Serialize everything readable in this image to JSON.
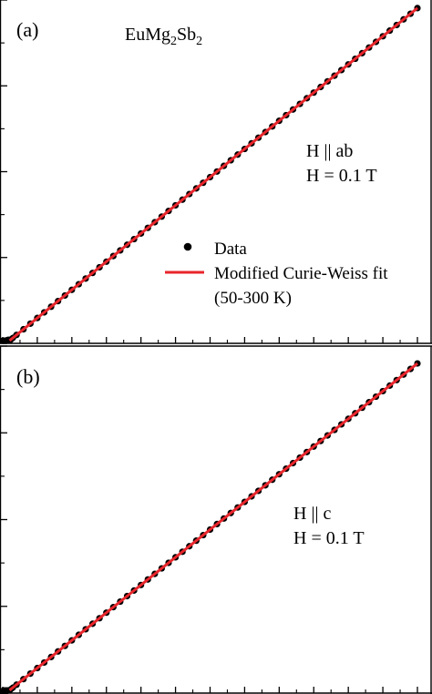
{
  "figure": {
    "compound": {
      "base1": "EuMg",
      "sub1": "2",
      "base2": "Sb",
      "sub2": "2"
    },
    "legend": {
      "data_label": "Data",
      "fit_label_line1": "Modified Curie-Weiss fit",
      "fit_label_line2": "(50-300 K)"
    }
  },
  "colors": {
    "data_marker": "#000000",
    "fit_line": "#e8262c",
    "axes": "#000000"
  },
  "chart_data": [
    {
      "type": "scatter",
      "panel_label": "(a)",
      "annotation_line1": "H || ab",
      "annotation_line2": "H = 0.1 T",
      "x_range": [
        0,
        300
      ],
      "y_range": [
        0,
        3.9
      ],
      "x_ticks_major": 12,
      "y_ticks_major": 4,
      "grid": false,
      "legend_position": "center-right",
      "series": [
        {
          "name": "Data",
          "style": "points",
          "x_start": 0,
          "x_end": 300,
          "x_step": 5,
          "low_T_points": [
            [
              0,
              0.03
            ],
            [
              1,
              0.03
            ],
            [
              2,
              0.03
            ],
            [
              3,
              0.035
            ],
            [
              4,
              0.04
            ]
          ],
          "slope": 0.0128,
          "intercept": -0.032
        },
        {
          "name": "Modified Curie-Weiss fit",
          "style": "line",
          "x": [
            5,
            300
          ],
          "slope": 0.0128,
          "intercept": -0.032
        }
      ]
    },
    {
      "type": "scatter",
      "panel_label": "(b)",
      "annotation_line1": "H || c",
      "annotation_line2": "H = 0.1 T",
      "x_range": [
        0,
        300
      ],
      "y_range": [
        0,
        3.9
      ],
      "x_ticks_major": 12,
      "y_ticks_major": 4,
      "grid": false,
      "legend_position": "none",
      "series": [
        {
          "name": "Data",
          "style": "points",
          "x_start": 0,
          "x_end": 300,
          "x_step": 5,
          "low_T_points": [
            [
              0,
              0.02
            ],
            [
              1,
              0.02
            ],
            [
              2,
              0.02
            ],
            [
              3,
              0.025
            ],
            [
              4,
              0.03
            ]
          ],
          "slope": 0.01245,
          "intercept": -0.03
        },
        {
          "name": "Modified Curie-Weiss fit",
          "style": "line",
          "x": [
            5,
            300
          ],
          "slope": 0.01245,
          "intercept": -0.03
        }
      ]
    }
  ]
}
